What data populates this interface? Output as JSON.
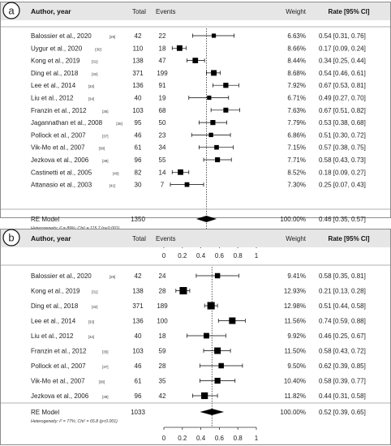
{
  "chart_data": [
    {
      "type": "forest",
      "panel_label": "a",
      "columns": {
        "author": "Author, year",
        "total": "Total",
        "events": "Events",
        "weight": "Weight",
        "rate": "Rate [95% CI]"
      },
      "studies": [
        {
          "author": "Balossier et al., 2020",
          "ref": "[29]",
          "total": "42",
          "events": "22",
          "weight": "6.63%",
          "rate_text": "0.54 [0.31, 0.76]",
          "est": 0.54,
          "lo": 0.31,
          "hi": 0.76
        },
        {
          "author": "Uygur et al., 2020",
          "ref": "[30]",
          "total": "110",
          "events": "18",
          "weight": "8.66%",
          "rate_text": "0.17 [0.09, 0.24]",
          "est": 0.17,
          "lo": 0.09,
          "hi": 0.24
        },
        {
          "author": "Kong et al., 2019",
          "ref": "[31]",
          "total": "138",
          "events": "47",
          "weight": "8.44%",
          "rate_text": "0.34 [0.25, 0.44]",
          "est": 0.34,
          "lo": 0.25,
          "hi": 0.44
        },
        {
          "author": "Ding et al., 2018",
          "ref": "[32]",
          "total": "371",
          "events": "199",
          "weight": "8.68%",
          "rate_text": "0.54 [0.46, 0.61]",
          "est": 0.54,
          "lo": 0.46,
          "hi": 0.61
        },
        {
          "author": "Lee et al., 2014",
          "ref": "[33]",
          "total": "136",
          "events": "91",
          "weight": "7.92%",
          "rate_text": "0.67 [0.53, 0.81]",
          "est": 0.67,
          "lo": 0.53,
          "hi": 0.81
        },
        {
          "author": "Liu et al., 2012",
          "ref": "[34]",
          "total": "40",
          "events": "19",
          "weight": "6.71%",
          "rate_text": "0.49 [0.27, 0.70]",
          "est": 0.49,
          "lo": 0.27,
          "hi": 0.7
        },
        {
          "author": "Franzin et al., 2012",
          "ref": "[35]",
          "total": "103",
          "events": "68",
          "weight": "7.63%",
          "rate_text": "0.67 [0.51, 0.82]",
          "est": 0.67,
          "lo": 0.51,
          "hi": 0.82
        },
        {
          "author": "Jagannathan et al., 2008",
          "ref": "[36]",
          "total": "95",
          "events": "50",
          "weight": "7.79%",
          "rate_text": "0.53 [0.38, 0.68]",
          "est": 0.53,
          "lo": 0.38,
          "hi": 0.68
        },
        {
          "author": "Pollock et al., 2007",
          "ref": "[37]",
          "total": "46",
          "events": "23",
          "weight": "6.86%",
          "rate_text": "0.51 [0.30, 0.72]",
          "est": 0.51,
          "lo": 0.3,
          "hi": 0.72
        },
        {
          "author": "Vik-Mo et al., 2007",
          "ref": "[38]",
          "total": "61",
          "events": "34",
          "weight": "7.15%",
          "rate_text": "0.57 [0.38, 0.75]",
          "est": 0.57,
          "lo": 0.38,
          "hi": 0.75
        },
        {
          "author": "Jezkova et al., 2006",
          "ref": "[39]",
          "total": "96",
          "events": "55",
          "weight": "7.71%",
          "rate_text": "0.58 [0.43, 0.73]",
          "est": 0.58,
          "lo": 0.43,
          "hi": 0.73
        },
        {
          "author": "Castinetti et al., 2005",
          "ref": "[40]",
          "total": "82",
          "events": "14",
          "weight": "8.52%",
          "rate_text": "0.18 [0.09, 0.27]",
          "est": 0.18,
          "lo": 0.09,
          "hi": 0.27
        },
        {
          "author": "Attanasio et al., 2003",
          "ref": "[41]",
          "total": "30",
          "events": "7",
          "weight": "7.30%",
          "rate_text": "0.25 [0.07, 0.43]",
          "est": 0.25,
          "lo": 0.07,
          "hi": 0.43
        }
      ],
      "summary": {
        "label": "RE Model",
        "total": "1350",
        "weight": "100.00%",
        "rate_text": "0.46 [0.35, 0.57]",
        "est": 0.46,
        "lo": 0.35,
        "hi": 0.57
      },
      "heterogeneity": "Heterogeneity: I² = 89%; Chi² = 115.7 (p<0.001)",
      "xlim": [
        0,
        1
      ],
      "x_ticks": [
        "0",
        "0.2",
        "0.4",
        "0.6",
        "0.8",
        "1"
      ],
      "x_tick_values": [
        0,
        0.2,
        0.4,
        0.6,
        0.8,
        1
      ],
      "reference_line": 0.46
    },
    {
      "type": "forest",
      "panel_label": "b",
      "columns": {
        "author": "Author, year",
        "total": "Total",
        "events": "Events",
        "weight": "Weight",
        "rate": "Rate [95% CI]"
      },
      "studies": [
        {
          "author": "Balossier et al., 2020",
          "ref": "[29]",
          "total": "42",
          "events": "24",
          "weight": "9.41%",
          "rate_text": "0.58 [0.35, 0.81]",
          "est": 0.58,
          "lo": 0.35,
          "hi": 0.81
        },
        {
          "author": "Kong et al., 2019",
          "ref": "[31]",
          "total": "138",
          "events": "28",
          "weight": "12.93%",
          "rate_text": "0.21 [0.13, 0.28]",
          "est": 0.21,
          "lo": 0.13,
          "hi": 0.28
        },
        {
          "author": "Ding et al., 2018",
          "ref": "[32]",
          "total": "371",
          "events": "189",
          "weight": "12.98%",
          "rate_text": "0.51 [0.44, 0.58]",
          "est": 0.51,
          "lo": 0.44,
          "hi": 0.58
        },
        {
          "author": "Lee et al., 2014",
          "ref": "[33]",
          "total": "136",
          "events": "100",
          "weight": "11.56%",
          "rate_text": "0.74 [0.59, 0.88]",
          "est": 0.74,
          "lo": 0.59,
          "hi": 0.88
        },
        {
          "author": "Liu et al., 2012",
          "ref": "[34]",
          "total": "40",
          "events": "18",
          "weight": "9.92%",
          "rate_text": "0.46 [0.25, 0.67]",
          "est": 0.46,
          "lo": 0.25,
          "hi": 0.67
        },
        {
          "author": "Franzin et al., 2012",
          "ref": "[35]",
          "total": "103",
          "events": "59",
          "weight": "11.50%",
          "rate_text": "0.58 [0.43, 0.72]",
          "est": 0.58,
          "lo": 0.43,
          "hi": 0.72
        },
        {
          "author": "Pollock et al., 2007",
          "ref": "[37]",
          "total": "46",
          "events": "28",
          "weight": "9.50%",
          "rate_text": "0.62 [0.39, 0.85]",
          "est": 0.62,
          "lo": 0.39,
          "hi": 0.85
        },
        {
          "author": "Vik-Mo et al., 2007",
          "ref": "[38]",
          "total": "61",
          "events": "35",
          "weight": "10.40%",
          "rate_text": "0.58 [0.39, 0.77]",
          "est": 0.58,
          "lo": 0.39,
          "hi": 0.77
        },
        {
          "author": "Jezkova et al., 2006",
          "ref": "[39]",
          "total": "96",
          "events": "42",
          "weight": "11.82%",
          "rate_text": "0.44 [0.31, 0.58]",
          "est": 0.44,
          "lo": 0.31,
          "hi": 0.58
        }
      ],
      "summary": {
        "label": "RE Model",
        "total": "1033",
        "weight": "100.00%",
        "rate_text": "0.52 [0.39, 0.65]",
        "est": 0.52,
        "lo": 0.39,
        "hi": 0.65
      },
      "heterogeneity": "Heterogeneity: I² = 77%; Chi² = 65.8 (p<0.001)",
      "xlim": [
        0,
        1
      ],
      "x_ticks": [
        "0",
        "0.2",
        "0.4",
        "0.6",
        "0.8",
        "1"
      ],
      "x_tick_values": [
        0,
        0.2,
        0.4,
        0.6,
        0.8,
        1
      ],
      "reference_line": 0.52
    }
  ],
  "colors": {
    "text": "#222222",
    "marker": "#000000",
    "header_band": "#e6e6e6",
    "rule": "#999999",
    "frame": "#8c8c8c"
  }
}
